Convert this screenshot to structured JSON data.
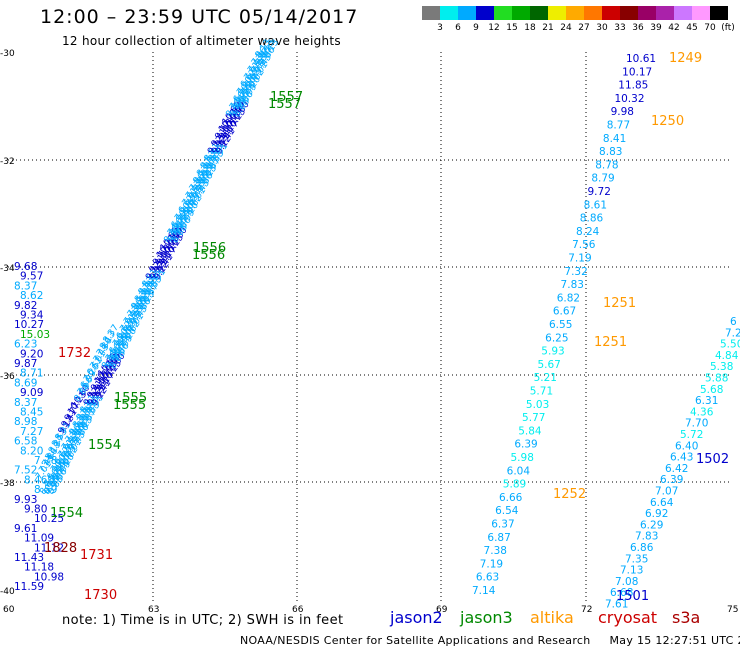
{
  "title": "12:00 – 23:59 UTC 05/14/2017",
  "subtitle": "12 hour collection of altimeter wave heights",
  "colorbar": {
    "colors": [
      "#7a7a7a",
      "#00eeee",
      "#00aaff",
      "#0000cc",
      "#22dd22",
      "#00aa00",
      "#006600",
      "#eeee00",
      "#ffaa00",
      "#ff7700",
      "#cc0000",
      "#880000",
      "#990066",
      "#aa22aa",
      "#cc77ff",
      "#ff99ff",
      "#000000"
    ],
    "labels": [
      "3",
      "6",
      "9",
      "12",
      "15",
      "18",
      "21",
      "24",
      "27",
      "30",
      "33",
      "36",
      "39",
      "42",
      "45",
      "70",
      "(ft)"
    ]
  },
  "axes": {
    "lat_labels": [
      "-30",
      "-32",
      "-34",
      "-36",
      "-38",
      "-40"
    ],
    "lon_labels": [
      "60",
      "63",
      "66",
      "69",
      "72",
      "75"
    ]
  },
  "note": "note: 1) Time is in UTC; 2) SWH is in feet",
  "legend": [
    {
      "name": "jason2",
      "color": "#0000cc"
    },
    {
      "name": "jason3",
      "color": "#008800"
    },
    {
      "name": "altika",
      "color": "#ff9900"
    },
    {
      "name": "cryosat",
      "color": "#cc0000"
    },
    {
      "name": "s3a",
      "color": "#aa0000"
    }
  ],
  "footer": "NOAA/NESDIS Center for Satellite Applications and Research     May 15 12:27:51 UTC 2017",
  "time_labels": [
    {
      "text": "1249",
      "color": "#ff9900"
    },
    {
      "text": "1250",
      "color": "#ff9900"
    },
    {
      "text": "1251",
      "color": "#ff9900"
    },
    {
      "text": "1251",
      "color": "#ff9900"
    },
    {
      "text": "1252",
      "color": "#ff9900"
    },
    {
      "text": "1557",
      "color": "#008800"
    },
    {
      "text": "1557",
      "color": "#008800"
    },
    {
      "text": "1556",
      "color": "#008800"
    },
    {
      "text": "1556",
      "color": "#008800"
    },
    {
      "text": "1555",
      "color": "#008800"
    },
    {
      "text": "1555",
      "color": "#008800"
    },
    {
      "text": "1554",
      "color": "#008800"
    },
    {
      "text": "1554",
      "color": "#008800"
    },
    {
      "text": "1732",
      "color": "#cc0000"
    },
    {
      "text": "1731",
      "color": "#cc0000"
    },
    {
      "text": "1730",
      "color": "#cc0000"
    },
    {
      "text": "1828",
      "color": "#880000"
    },
    {
      "text": "1502",
      "color": "#0000cc"
    },
    {
      "text": "1501",
      "color": "#0000cc"
    }
  ],
  "tracks": {
    "altika_track_top": [
      "10.61",
      "10.17",
      "11.85",
      "10.32",
      "9.98",
      "8.77",
      "8.41",
      "8.83",
      "8.78",
      "8.79",
      "9.72",
      "8.61",
      "8.86",
      "8.24",
      "7.56",
      "7.19",
      "7.32",
      "7.83",
      "6.82",
      "6.67",
      "6.55",
      "6.25",
      "5.93",
      "5.67",
      "5.21",
      "5.71",
      "5.03",
      "5.77",
      "5.84",
      "6.39",
      "5.98",
      "6.04",
      "5.89",
      "6.66",
      "6.54",
      "6.37",
      "6.87",
      "7.38",
      "7.19",
      "6.63",
      "7.14"
    ],
    "jason2_track_right": [
      "6",
      "7.2",
      "5.50",
      "4.84",
      "5.38",
      "5.88",
      "5.68",
      "6.31",
      "4.36",
      "7.70",
      "5.72",
      "6.40",
      "6.43",
      "6.42",
      "6.39",
      "7.07",
      "6.64",
      "6.92",
      "6.29",
      "7.83",
      "6.86",
      "7.35",
      "7.13",
      "7.08",
      "6.68",
      "7.61"
    ],
    "left_column": [
      "9.68",
      "9.57",
      "8.37",
      "8.62",
      "9.82",
      "9.34",
      "10.27",
      "15.03",
      "6.23",
      "9.20",
      "9.87",
      "8.71",
      "8.69",
      "9.09",
      "8.37",
      "8.45",
      "8.98",
      "7.27",
      "6.58",
      "8.20",
      "7.78",
      "7.52",
      "8.46",
      "8.59",
      "9.93",
      "9.80",
      "10.25",
      "9.61",
      "11.09",
      "11.12",
      "11.43",
      "11.18",
      "10.98",
      "11.59"
    ],
    "diag_track_numbers": [
      "8.88",
      "7.56",
      "6.99",
      "7.20",
      "6.62",
      "7.01",
      "7.43",
      "7.86",
      "8.13",
      "8.37",
      "8.53",
      "8.91",
      "9.12",
      "9.41",
      "9.77",
      "10.23",
      "10.60"
    ]
  }
}
